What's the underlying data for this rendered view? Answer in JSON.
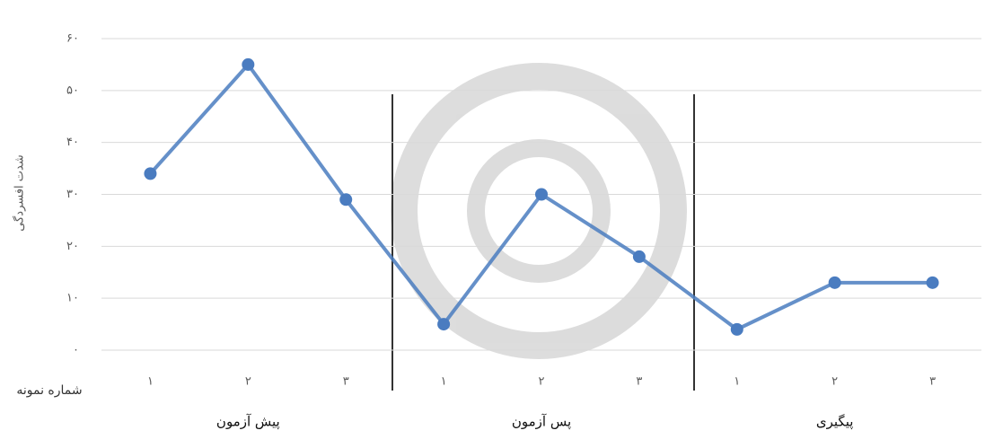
{
  "chart_data": {
    "type": "line",
    "y_label": "شدت افسردگی",
    "x_label": "شماره نمونه",
    "categories": [
      "۱",
      "۲",
      "۳",
      "۱",
      "۲",
      "۳",
      "۱",
      "۲",
      "۳"
    ],
    "groups": [
      "پیش آزمون",
      "پس آزمون",
      "پیگیری"
    ],
    "values": [
      34,
      55,
      29,
      5,
      30,
      18,
      4,
      13,
      13
    ],
    "color": "#4a7cc0",
    "ylim": [
      0,
      60
    ],
    "yticks": [
      {
        "value": 0,
        "label": "۰"
      },
      {
        "value": 10,
        "label": "۱۰"
      },
      {
        "value": 20,
        "label": "۲۰"
      },
      {
        "value": 30,
        "label": "۳۰"
      },
      {
        "value": 40,
        "label": "۴۰"
      },
      {
        "value": 50,
        "label": "۵۰"
      },
      {
        "value": 60,
        "label": "۶۰"
      }
    ],
    "grid": true
  }
}
